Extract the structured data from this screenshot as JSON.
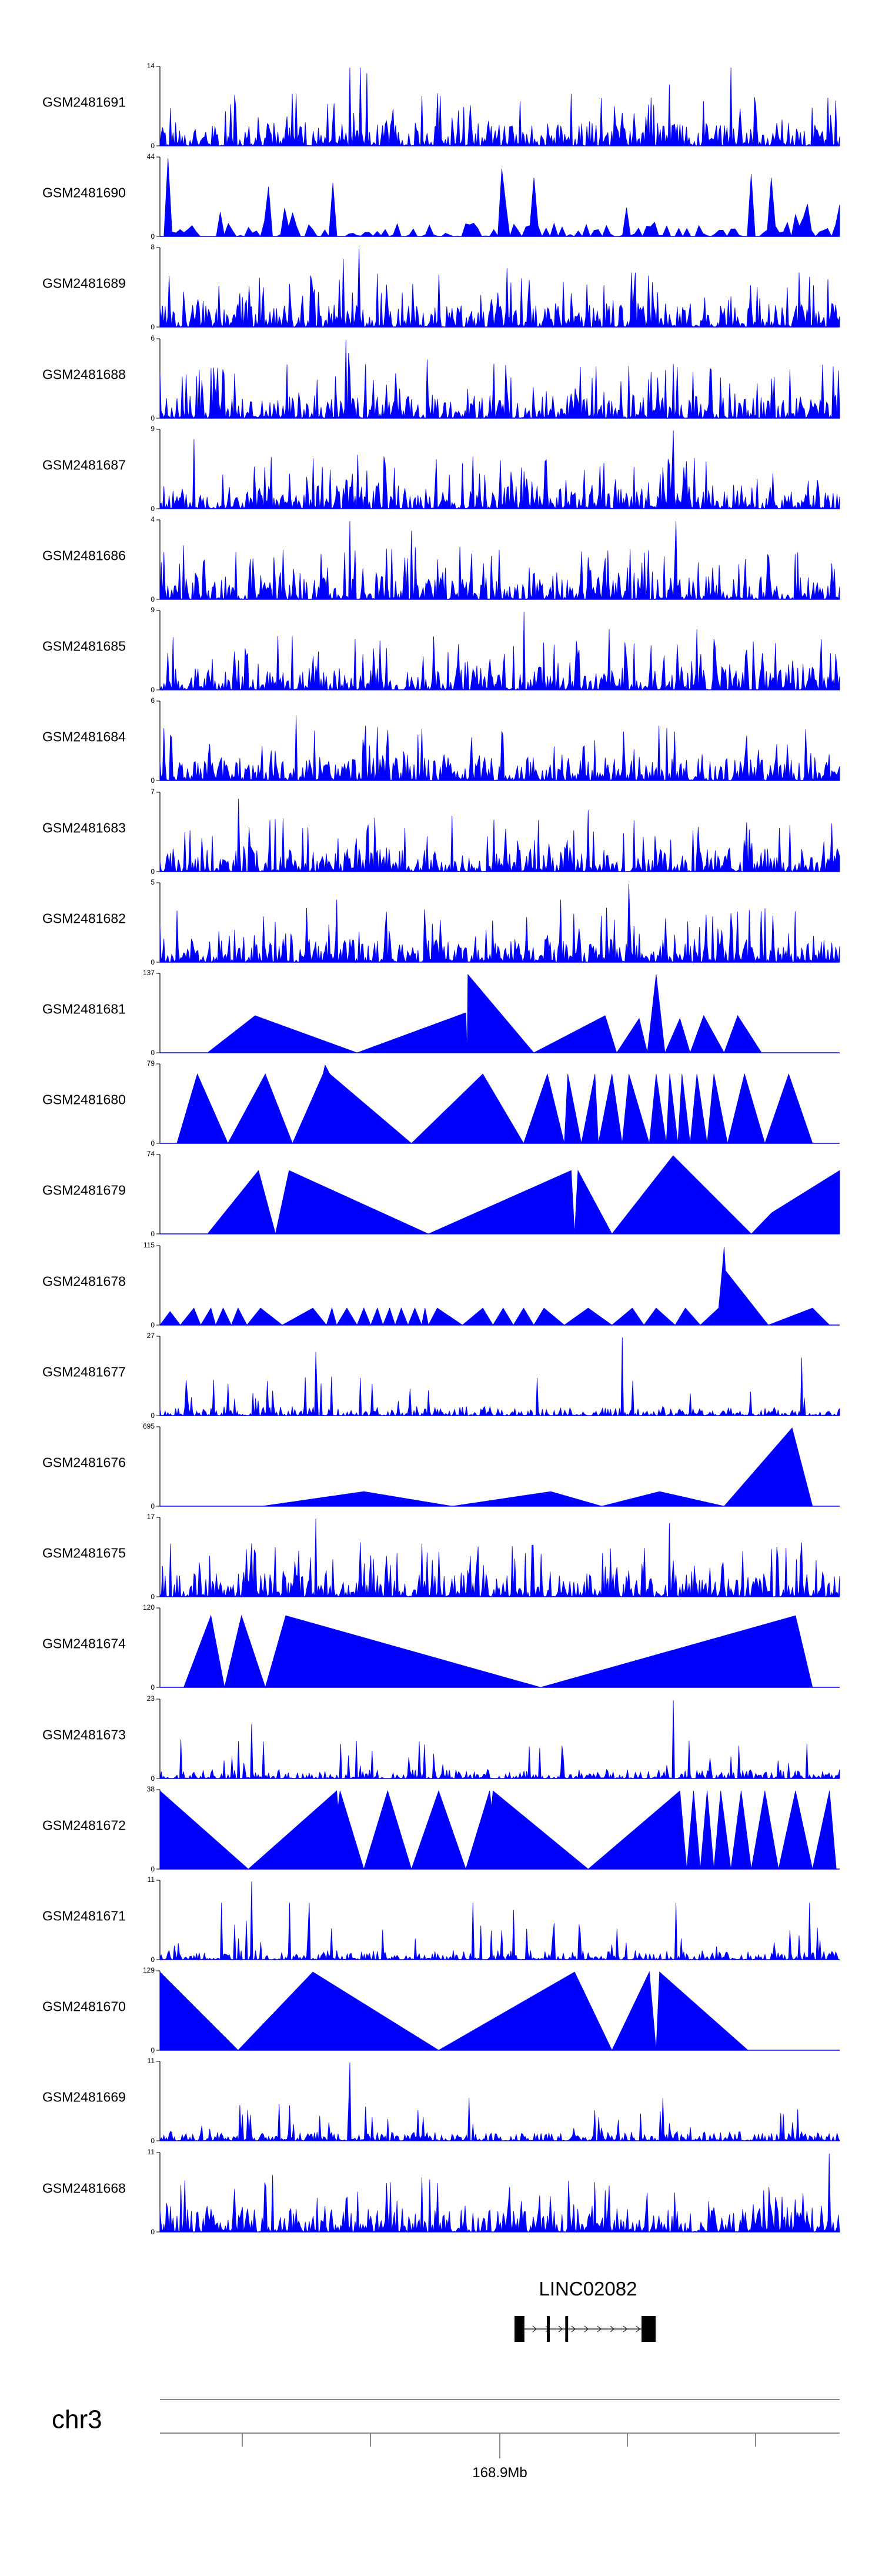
{
  "chart_data": {
    "type": "area",
    "title": "",
    "xlabel": "",
    "ylabel": "",
    "color": "#0000ff",
    "chromosome": "chr3",
    "axis_label": "168.9Mb",
    "gene": {
      "name": "LINC02082",
      "strand": "+",
      "exons_rel": [
        [
          0.0,
          0.07
        ],
        [
          0.23,
          0.25
        ],
        [
          0.36,
          0.38
        ],
        [
          0.9,
          1.0
        ]
      ]
    },
    "tracks": [
      {
        "name": "GSM2481691",
        "ymax": 14,
        "style": "dense",
        "seed": 1,
        "peaks": [
          [
            0.28,
            14
          ],
          [
            0.295,
            14
          ],
          [
            0.305,
            13
          ],
          [
            0.75,
            11
          ],
          [
            0.84,
            14
          ],
          [
            0.53,
            8
          ],
          [
            0.8,
            8
          ]
        ]
      },
      {
        "name": "GSM2481690",
        "ymax": 44,
        "style": "gapped",
        "seed": 2,
        "peaks": [
          [
            0.012,
            44
          ],
          [
            0.16,
            28
          ],
          [
            0.255,
            30
          ],
          [
            0.505,
            38
          ],
          [
            0.87,
            35
          ],
          [
            0.9,
            33
          ],
          [
            0.55,
            33
          ]
        ]
      },
      {
        "name": "GSM2481689",
        "ymax": 8,
        "style": "dense",
        "seed": 3,
        "peaks": [
          [
            0.293,
            8
          ],
          [
            0.27,
            7
          ],
          [
            0.51,
            6
          ]
        ]
      },
      {
        "name": "GSM2481688",
        "ymax": 6,
        "style": "dense",
        "seed": 4,
        "peaks": [
          [
            0.273,
            6
          ],
          [
            0.278,
            5
          ],
          [
            0.393,
            4.5
          ],
          [
            0.69,
            4
          ]
        ]
      },
      {
        "name": "GSM2481687",
        "ymax": 9,
        "style": "dense",
        "seed": 5,
        "peaks": [
          [
            0.05,
            8
          ],
          [
            0.755,
            9
          ],
          [
            0.46,
            6
          ],
          [
            0.33,
            6
          ]
        ]
      },
      {
        "name": "GSM2481686",
        "ymax": 4,
        "style": "dense",
        "seed": 6,
        "peaks": [
          [
            0.28,
            4
          ],
          [
            0.76,
            4
          ],
          [
            0.37,
            3.5
          ]
        ]
      },
      {
        "name": "GSM2481685",
        "ymax": 9,
        "style": "dense",
        "seed": 7,
        "peaks": [
          [
            0.535,
            9
          ],
          [
            0.79,
            7
          ],
          [
            0.66,
            7
          ]
        ]
      },
      {
        "name": "GSM2481684",
        "ymax": 6,
        "style": "dense",
        "seed": 8,
        "peaks": [
          [
            0.2,
            5
          ],
          [
            0.005,
            4
          ],
          [
            0.38,
            3.5
          ]
        ]
      },
      {
        "name": "GSM2481683",
        "ymax": 7,
        "style": "dense",
        "seed": 9,
        "peaks": [
          [
            0.115,
            6.5
          ],
          [
            0.63,
            5.5
          ],
          [
            0.43,
            5
          ]
        ]
      },
      {
        "name": "GSM2481682",
        "ymax": 5,
        "style": "dense",
        "seed": 10,
        "peaks": [
          [
            0.69,
            5
          ],
          [
            0.59,
            4
          ],
          [
            0.26,
            4
          ]
        ]
      },
      {
        "name": "GSM2481681",
        "ymax": 137,
        "style": "tri",
        "points": [
          [
            0.07,
            0
          ],
          [
            0.14,
            65
          ],
          [
            0.29,
            0
          ],
          [
            0.45,
            70
          ],
          [
            0.452,
            0
          ],
          [
            0.453,
            137
          ],
          [
            0.55,
            0
          ],
          [
            0.655,
            65
          ],
          [
            0.672,
            0
          ],
          [
            0.705,
            60
          ],
          [
            0.717,
            0
          ],
          [
            0.73,
            137
          ],
          [
            0.743,
            0
          ],
          [
            0.765,
            60
          ],
          [
            0.78,
            0
          ],
          [
            0.8,
            65
          ],
          [
            0.83,
            0
          ],
          [
            0.85,
            65
          ],
          [
            0.885,
            0
          ]
        ]
      },
      {
        "name": "GSM2481680",
        "ymax": 79,
        "style": "tri",
        "points": [
          [
            0.025,
            0
          ],
          [
            0.055,
            70
          ],
          [
            0.1,
            0
          ],
          [
            0.155,
            70
          ],
          [
            0.195,
            0
          ],
          [
            0.24,
            70
          ],
          [
            0.243,
            79
          ],
          [
            0.25,
            70
          ],
          [
            0.37,
            0
          ],
          [
            0.475,
            70
          ],
          [
            0.535,
            0
          ],
          [
            0.57,
            70
          ],
          [
            0.595,
            0
          ],
          [
            0.6,
            70
          ],
          [
            0.62,
            0
          ],
          [
            0.64,
            70
          ],
          [
            0.645,
            0
          ],
          [
            0.665,
            70
          ],
          [
            0.68,
            0
          ],
          [
            0.69,
            70
          ],
          [
            0.72,
            0
          ],
          [
            0.73,
            70
          ],
          [
            0.745,
            0
          ],
          [
            0.75,
            70
          ],
          [
            0.762,
            0
          ],
          [
            0.768,
            70
          ],
          [
            0.78,
            0
          ],
          [
            0.79,
            70
          ],
          [
            0.805,
            0
          ],
          [
            0.815,
            70
          ],
          [
            0.835,
            0
          ],
          [
            0.86,
            70
          ],
          [
            0.89,
            0
          ],
          [
            0.925,
            70
          ],
          [
            0.96,
            0
          ]
        ]
      },
      {
        "name": "GSM2481679",
        "ymax": 74,
        "style": "tri",
        "points": [
          [
            0.07,
            0
          ],
          [
            0.145,
            60
          ],
          [
            0.17,
            0
          ],
          [
            0.19,
            60
          ],
          [
            0.395,
            0
          ],
          [
            0.605,
            60
          ],
          [
            0.61,
            0
          ],
          [
            0.615,
            60
          ],
          [
            0.665,
            0
          ],
          [
            0.755,
            74
          ],
          [
            0.87,
            0
          ],
          [
            0.9,
            20
          ],
          [
            1.0,
            60
          ],
          [
            1.0,
            0
          ]
        ]
      },
      {
        "name": "GSM2481678",
        "ymax": 115,
        "style": "tri",
        "points": [
          [
            0.0,
            0
          ],
          [
            0.015,
            20
          ],
          [
            0.03,
            0
          ],
          [
            0.05,
            25
          ],
          [
            0.06,
            0
          ],
          [
            0.075,
            25
          ],
          [
            0.082,
            0
          ],
          [
            0.093,
            25
          ],
          [
            0.105,
            0
          ],
          [
            0.115,
            25
          ],
          [
            0.128,
            0
          ],
          [
            0.148,
            25
          ],
          [
            0.18,
            0
          ],
          [
            0.225,
            25
          ],
          [
            0.245,
            0
          ],
          [
            0.253,
            25
          ],
          [
            0.26,
            0
          ],
          [
            0.275,
            25
          ],
          [
            0.29,
            0
          ],
          [
            0.3,
            25
          ],
          [
            0.31,
            0
          ],
          [
            0.32,
            25
          ],
          [
            0.328,
            0
          ],
          [
            0.338,
            25
          ],
          [
            0.346,
            0
          ],
          [
            0.355,
            25
          ],
          [
            0.365,
            0
          ],
          [
            0.375,
            25
          ],
          [
            0.385,
            0
          ],
          [
            0.39,
            25
          ],
          [
            0.395,
            0
          ],
          [
            0.408,
            25
          ],
          [
            0.445,
            0
          ],
          [
            0.475,
            25
          ],
          [
            0.49,
            0
          ],
          [
            0.505,
            25
          ],
          [
            0.52,
            0
          ],
          [
            0.535,
            25
          ],
          [
            0.55,
            0
          ],
          [
            0.565,
            25
          ],
          [
            0.595,
            0
          ],
          [
            0.63,
            25
          ],
          [
            0.665,
            0
          ],
          [
            0.695,
            25
          ],
          [
            0.712,
            0
          ],
          [
            0.73,
            25
          ],
          [
            0.758,
            0
          ],
          [
            0.773,
            25
          ],
          [
            0.795,
            0
          ],
          [
            0.822,
            25
          ],
          [
            0.828,
            90
          ],
          [
            0.83,
            115
          ],
          [
            0.832,
            80
          ],
          [
            0.895,
            0
          ],
          [
            0.96,
            25
          ],
          [
            0.985,
            0
          ]
        ]
      },
      {
        "name": "GSM2481677",
        "ymax": 27,
        "style": "sparse",
        "seed": 13,
        "peaks": [
          [
            0.23,
            22
          ],
          [
            0.68,
            27
          ],
          [
            0.945,
            20
          ],
          [
            0.14,
            6
          ],
          [
            0.35,
            5
          ]
        ]
      },
      {
        "name": "GSM2481676",
        "ymax": 695,
        "style": "tri",
        "points": [
          [
            0.15,
            0
          ],
          [
            0.3,
            130
          ],
          [
            0.43,
            0
          ],
          [
            0.575,
            130
          ],
          [
            0.65,
            0
          ],
          [
            0.735,
            130
          ],
          [
            0.83,
            0
          ],
          [
            0.93,
            695
          ],
          [
            0.96,
            0
          ]
        ]
      },
      {
        "name": "GSM2481675",
        "ymax": 17,
        "style": "dense",
        "seed": 15,
        "peaks": [
          [
            0.23,
            17
          ],
          [
            0.75,
            16
          ],
          [
            0.205,
            10
          ],
          [
            0.31,
            9
          ],
          [
            0.4,
            8
          ]
        ]
      },
      {
        "name": "GSM2481674",
        "ymax": 120,
        "style": "tri",
        "points": [
          [
            0.035,
            0
          ],
          [
            0.075,
            110
          ],
          [
            0.095,
            0
          ],
          [
            0.12,
            110
          ],
          [
            0.155,
            0
          ],
          [
            0.185,
            110
          ],
          [
            0.56,
            0
          ],
          [
            0.935,
            110
          ],
          [
            0.96,
            0
          ]
        ]
      },
      {
        "name": "GSM2481673",
        "ymax": 23,
        "style": "sparse",
        "seed": 17,
        "peaks": [
          [
            0.755,
            23
          ],
          [
            0.135,
            16
          ],
          [
            0.115,
            11
          ],
          [
            0.39,
            10
          ],
          [
            0.81,
            6
          ]
        ]
      },
      {
        "name": "GSM2481672",
        "ymax": 38,
        "style": "tri",
        "points": [
          [
            0.0,
            38
          ],
          [
            0.13,
            0
          ],
          [
            0.26,
            38
          ],
          [
            0.262,
            30
          ],
          [
            0.265,
            38
          ],
          [
            0.3,
            0
          ],
          [
            0.335,
            38
          ],
          [
            0.37,
            0
          ],
          [
            0.41,
            38
          ],
          [
            0.45,
            0
          ],
          [
            0.485,
            38
          ],
          [
            0.488,
            30
          ],
          [
            0.49,
            38
          ],
          [
            0.63,
            0
          ],
          [
            0.765,
            38
          ],
          [
            0.775,
            0
          ],
          [
            0.785,
            38
          ],
          [
            0.795,
            0
          ],
          [
            0.805,
            38
          ],
          [
            0.815,
            0
          ],
          [
            0.825,
            38
          ],
          [
            0.84,
            0
          ],
          [
            0.855,
            38
          ],
          [
            0.87,
            0
          ],
          [
            0.89,
            38
          ],
          [
            0.91,
            0
          ],
          [
            0.935,
            38
          ],
          [
            0.96,
            0
          ],
          [
            0.985,
            38
          ],
          [
            0.995,
            0
          ]
        ]
      },
      {
        "name": "GSM2481671",
        "ymax": 11,
        "style": "sparse",
        "seed": 19,
        "peaks": [
          [
            0.135,
            11
          ],
          [
            0.09,
            8
          ],
          [
            0.19,
            8
          ],
          [
            0.22,
            8
          ],
          [
            0.46,
            8
          ],
          [
            0.52,
            7
          ],
          [
            0.76,
            8
          ],
          [
            0.955,
            8
          ]
        ]
      },
      {
        "name": "GSM2481670",
        "ymax": 129,
        "style": "tri",
        "points": [
          [
            0.0,
            129
          ],
          [
            0.115,
            0
          ],
          [
            0.225,
            129
          ],
          [
            0.41,
            0
          ],
          [
            0.61,
            129
          ],
          [
            0.665,
            0
          ],
          [
            0.72,
            129
          ],
          [
            0.73,
            0
          ],
          [
            0.735,
            129
          ],
          [
            0.865,
            0
          ]
        ]
      },
      {
        "name": "GSM2481669",
        "ymax": 11,
        "style": "sparse",
        "seed": 21,
        "peaks": [
          [
            0.28,
            11
          ],
          [
            0.455,
            6
          ],
          [
            0.74,
            6
          ],
          [
            0.19,
            5
          ]
        ]
      },
      {
        "name": "GSM2481668",
        "ymax": 11,
        "style": "dense",
        "seed": 22,
        "peaks": [
          [
            0.985,
            11
          ],
          [
            0.165,
            8
          ],
          [
            0.64,
            7
          ],
          [
            0.34,
            7
          ]
        ]
      }
    ]
  }
}
